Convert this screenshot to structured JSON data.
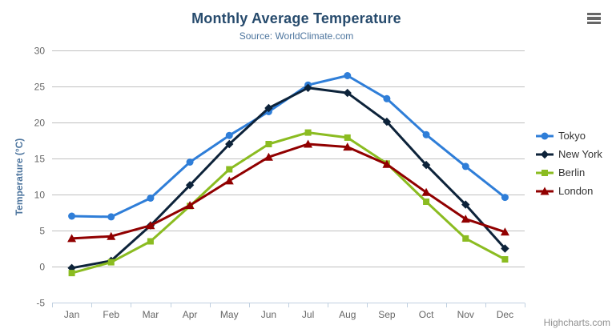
{
  "chart_data": {
    "type": "line",
    "title": "Monthly Average Temperature",
    "subtitle": "Source: WorldClimate.com",
    "categories": [
      "Jan",
      "Feb",
      "Mar",
      "Apr",
      "May",
      "Jun",
      "Jul",
      "Aug",
      "Sep",
      "Oct",
      "Nov",
      "Dec"
    ],
    "xlabel": "",
    "ylabel": "Temperature (°C)",
    "ylim": [
      -5,
      30
    ],
    "ytick_step": 5,
    "grid": true,
    "legend_position": "right",
    "series": [
      {
        "name": "Tokyo",
        "color": "#2f7ed8",
        "marker": "circle",
        "values": [
          7.0,
          6.9,
          9.5,
          14.5,
          18.2,
          21.5,
          25.2,
          26.5,
          23.3,
          18.3,
          13.9,
          9.6
        ]
      },
      {
        "name": "New York",
        "color": "#0d233a",
        "marker": "diamond",
        "values": [
          -0.2,
          0.8,
          5.7,
          11.3,
          17.0,
          22.0,
          24.8,
          24.1,
          20.1,
          14.1,
          8.6,
          2.5
        ]
      },
      {
        "name": "Berlin",
        "color": "#8bbc21",
        "marker": "square",
        "values": [
          -0.9,
          0.6,
          3.5,
          8.4,
          13.5,
          17.0,
          18.6,
          17.9,
          14.3,
          9.0,
          3.9,
          1.0
        ]
      },
      {
        "name": "London",
        "color": "#910000",
        "marker": "triangle",
        "values": [
          3.9,
          4.2,
          5.7,
          8.5,
          11.9,
          15.2,
          17.0,
          16.6,
          14.2,
          10.3,
          6.6,
          4.8
        ]
      }
    ],
    "credits": "Highcharts.com",
    "colors": {
      "title": "#274b6d",
      "subtitle": "#4d759e",
      "axis_labels": "#666666",
      "gridline": "#C0C0C0",
      "x_axis_line": "#C0D0E0",
      "legend_text": "#333333",
      "credits_text": "#909090"
    }
  },
  "toolbar": {
    "menu_icon": "hamburger"
  }
}
